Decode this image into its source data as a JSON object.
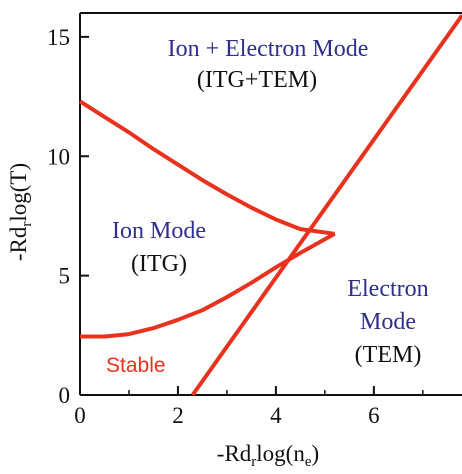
{
  "chart_data": {
    "type": "line",
    "title": "",
    "xlabel": "-Rdrlog(ne)",
    "xlabel_parts": {
      "main": "-Rd",
      "sub1": "r",
      "mid": "log(n",
      "sub2": "e",
      "end": ")"
    },
    "ylabel": "-Rdrlog(T)",
    "ylabel_parts": {
      "main": "-Rd",
      "sub1": "r",
      "end": "log(T)"
    },
    "xlim": [
      0,
      7.8
    ],
    "ylim": [
      0,
      16
    ],
    "x_ticks": [
      0,
      2,
      4,
      6
    ],
    "y_ticks": [
      0,
      5,
      10,
      15
    ],
    "x_tick_labels": [
      "0",
      "2",
      "4",
      "6"
    ],
    "y_tick_labels": [
      "0",
      "5",
      "10",
      "15"
    ],
    "grid": false,
    "legend": "none",
    "line_color": "#e8321e",
    "label_blue_color": "#2e2e8c",
    "series": [
      {
        "x": [
          0,
          0.5,
          1.0,
          1.5,
          2.0,
          2.5,
          3.0,
          3.5,
          4.0,
          4.5,
          5.2
        ],
        "y": [
          12.3,
          11.65,
          11.0,
          10.3,
          9.65,
          9.0,
          8.4,
          7.85,
          7.35,
          6.95,
          6.75
        ]
      },
      {
        "x": [
          0,
          0.5,
          1.0,
          1.5,
          2.0,
          2.5,
          3.0,
          3.5,
          4.0,
          4.5,
          5.2
        ],
        "y": [
          2.45,
          2.45,
          2.55,
          2.8,
          3.15,
          3.55,
          4.1,
          4.7,
          5.35,
          5.95,
          6.75
        ]
      },
      {
        "x": [
          2.3,
          7.8
        ],
        "y": [
          0,
          15.9
        ]
      }
    ],
    "annotations": [
      {
        "line1": "Ion + Electron Mode",
        "line2": "(ITG+TEM)"
      },
      {
        "line1": "Ion Mode",
        "line2": "(ITG)"
      },
      {
        "line1": "Electron",
        "line2": "Mode",
        "line3": "(TEM)"
      },
      {
        "line1": "Stable"
      }
    ]
  }
}
